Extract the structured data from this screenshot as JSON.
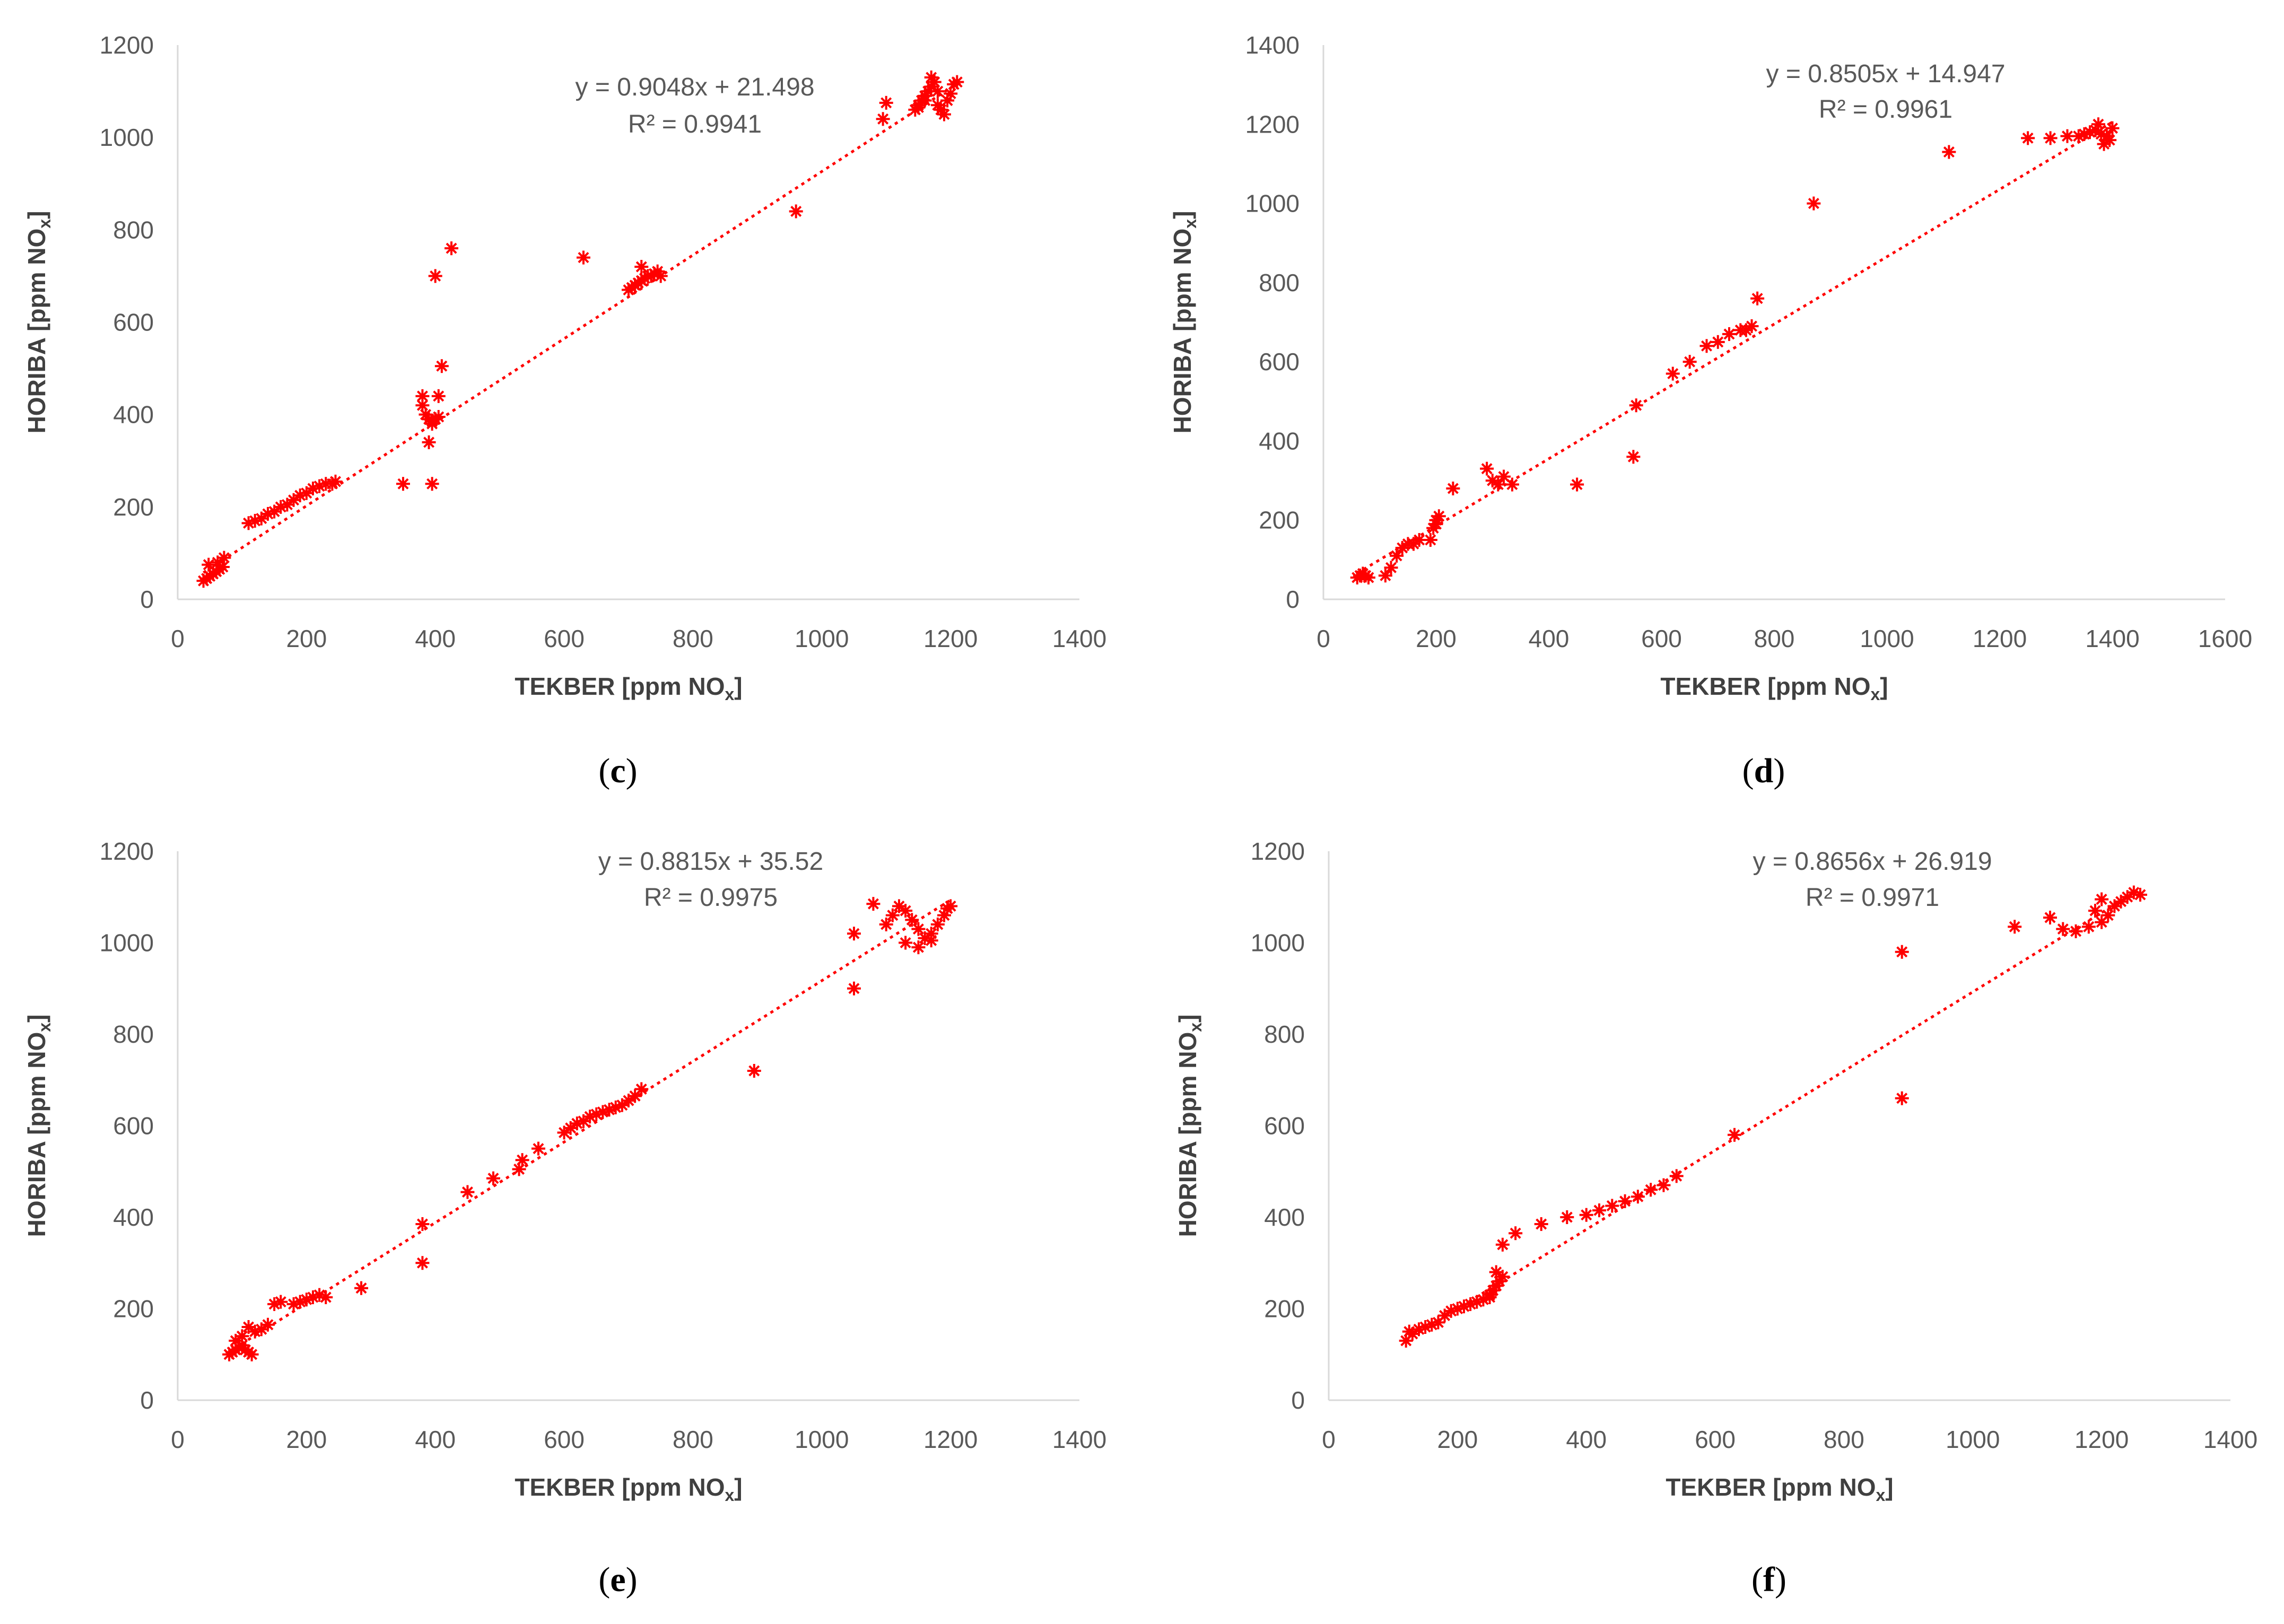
{
  "colors": {
    "marker": "#ff0000",
    "trend": "#ff0000",
    "axis": "#d9d9d9",
    "text": "#595959"
  },
  "chart_data": [
    {
      "type": "scatter",
      "panel_label": "c",
      "equation": "y = 0.9048x + 21.498",
      "r2": "R² = 0.9941",
      "xlabel": "TEKBER [ppm NO",
      "xlabel_sub": "x",
      "xlabel_end": "]",
      "ylabel": "HORIBA [ppm NO",
      "ylabel_sub": "x",
      "ylabel_end": "]",
      "xlim": [
        0,
        1400
      ],
      "ylim": [
        0,
        1200
      ],
      "xticks": [
        0,
        200,
        400,
        600,
        800,
        1000,
        1200,
        1400
      ],
      "yticks": [
        0,
        200,
        400,
        600,
        800,
        1000,
        1200
      ],
      "trendline": {
        "slope": 0.9048,
        "intercept": 21.498,
        "x_range": [
          40,
          1210
        ]
      },
      "marker": "asterisk",
      "series": [
        {
          "x": [
            40,
            45,
            50,
            55,
            60,
            65,
            70,
            48,
            62,
            72,
            110,
            120,
            130,
            140,
            150,
            160,
            170,
            180,
            190,
            200,
            210,
            220,
            230,
            240,
            245,
            350,
            380,
            385,
            390,
            395,
            400,
            405,
            390,
            395,
            405,
            380,
            410,
            395,
            400,
            425,
            630,
            700,
            705,
            710,
            715,
            720,
            725,
            730,
            735,
            740,
            745,
            750,
            720,
            960,
            1095,
            1100,
            1145,
            1150,
            1155,
            1160,
            1165,
            1170,
            1175,
            1180,
            1185,
            1190,
            1195,
            1200,
            1205,
            1210,
            1170,
            1180,
            1160,
            1150
          ],
          "y": [
            40,
            45,
            50,
            55,
            60,
            65,
            70,
            75,
            80,
            90,
            165,
            170,
            175,
            185,
            190,
            200,
            205,
            215,
            225,
            230,
            240,
            245,
            250,
            250,
            255,
            250,
            440,
            400,
            390,
            380,
            390,
            395,
            340,
            250,
            440,
            420,
            505,
            385,
            700,
            760,
            740,
            670,
            675,
            680,
            685,
            690,
            695,
            700,
            700,
            705,
            710,
            700,
            720,
            840,
            1040,
            1075,
            1060,
            1070,
            1080,
            1090,
            1100,
            1110,
            1120,
            1070,
            1060,
            1050,
            1080,
            1095,
            1115,
            1120,
            1130,
            1100,
            1080,
            1065
          ]
        }
      ]
    },
    {
      "type": "scatter",
      "panel_label": "d",
      "equation": "y = 0.8505x + 14.947",
      "r2": "R² = 0.9961",
      "xlabel": "TEKBER [ppm NO",
      "xlabel_sub": "x",
      "xlabel_end": "]",
      "ylabel": "HORIBA [ppm NO",
      "ylabel_sub": "x",
      "ylabel_end": "]",
      "xlim": [
        0,
        1600
      ],
      "ylim": [
        0,
        1400
      ],
      "xticks": [
        0,
        200,
        400,
        600,
        800,
        1000,
        1200,
        1400,
        1600
      ],
      "yticks": [
        0,
        200,
        400,
        600,
        800,
        1000,
        1200,
        1400
      ],
      "trendline": {
        "slope": 0.8505,
        "intercept": 14.947,
        "x_range": [
          60,
          1400
        ]
      },
      "marker": "asterisk",
      "series": [
        {
          "x": [
            60,
            65,
            70,
            75,
            80,
            110,
            120,
            130,
            140,
            150,
            160,
            170,
            190,
            195,
            200,
            205,
            200,
            230,
            290,
            300,
            310,
            320,
            335,
            450,
            550,
            555,
            620,
            650,
            680,
            700,
            720,
            740,
            750,
            760,
            770,
            870,
            1110,
            1250,
            1290,
            1320,
            1340,
            1350,
            1360,
            1370,
            1380,
            1390,
            1395,
            1400,
            1385,
            1375
          ],
          "y": [
            55,
            60,
            65,
            60,
            55,
            60,
            80,
            110,
            130,
            140,
            140,
            150,
            150,
            180,
            200,
            210,
            190,
            280,
            330,
            300,
            290,
            310,
            290,
            290,
            360,
            490,
            570,
            600,
            640,
            650,
            670,
            680,
            680,
            690,
            760,
            1000,
            1130,
            1165,
            1165,
            1170,
            1170,
            1175,
            1180,
            1185,
            1175,
            1170,
            1160,
            1190,
            1150,
            1200
          ]
        }
      ]
    },
    {
      "type": "scatter",
      "panel_label": "e",
      "equation": "y = 0.8815x + 35.52",
      "r2": "R² = 0.9975",
      "xlabel": "TEKBER [ppm NO",
      "xlabel_sub": "x",
      "xlabel_end": "]",
      "ylabel": "HORIBA [ppm NO",
      "ylabel_sub": "x",
      "ylabel_end": "]",
      "xlim": [
        0,
        1400
      ],
      "ylim": [
        0,
        1200
      ],
      "xticks": [
        0,
        200,
        400,
        600,
        800,
        1000,
        1200,
        1400
      ],
      "yticks": [
        0,
        200,
        400,
        600,
        800,
        1000,
        1200
      ],
      "trendline": {
        "slope": 0.8815,
        "intercept": 35.52,
        "x_range": [
          80,
          1200
        ]
      },
      "marker": "asterisk",
      "series": [
        {
          "x": [
            80,
            85,
            90,
            95,
            100,
            105,
            110,
            115,
            90,
            100,
            110,
            120,
            130,
            140,
            150,
            160,
            180,
            190,
            200,
            210,
            220,
            230,
            285,
            380,
            380,
            450,
            490,
            530,
            535,
            560,
            600,
            610,
            620,
            630,
            640,
            650,
            660,
            670,
            680,
            690,
            700,
            710,
            720,
            895,
            1050,
            1050,
            1080,
            1100,
            1110,
            1120,
            1130,
            1140,
            1150,
            1160,
            1170,
            1180,
            1190,
            1195,
            1200,
            1150,
            1130,
            1170
          ],
          "y": [
            100,
            105,
            110,
            115,
            120,
            110,
            105,
            100,
            130,
            140,
            160,
            150,
            155,
            165,
            210,
            215,
            210,
            215,
            220,
            225,
            230,
            225,
            245,
            385,
            300,
            455,
            485,
            505,
            525,
            550,
            585,
            595,
            605,
            610,
            620,
            625,
            630,
            635,
            640,
            645,
            655,
            665,
            680,
            720,
            900,
            1020,
            1085,
            1040,
            1060,
            1080,
            1070,
            1050,
            1030,
            1010,
            1020,
            1040,
            1060,
            1075,
            1080,
            990,
            1000,
            1005
          ]
        }
      ]
    },
    {
      "type": "scatter",
      "panel_label": "f",
      "equation": "y = 0.8656x + 26.919",
      "r2": "R² = 0.9971",
      "xlabel": "TEKBER [ppm NO",
      "xlabel_sub": "x",
      "xlabel_end": "]",
      "ylabel": "HORIBA [ppm NO",
      "ylabel_sub": "x",
      "ylabel_end": "]",
      "xlim": [
        0,
        1400
      ],
      "ylim": [
        0,
        1200
      ],
      "xticks": [
        0,
        200,
        400,
        600,
        800,
        1000,
        1200,
        1400
      ],
      "yticks": [
        0,
        200,
        400,
        600,
        800,
        1000,
        1200
      ],
      "trendline": {
        "slope": 0.8656,
        "intercept": 26.919,
        "x_range": [
          120,
          1260
        ]
      },
      "marker": "asterisk",
      "series": [
        {
          "x": [
            120,
            125,
            130,
            140,
            150,
            160,
            170,
            180,
            190,
            200,
            210,
            220,
            230,
            240,
            250,
            255,
            260,
            265,
            270,
            260,
            250,
            270,
            290,
            330,
            370,
            400,
            420,
            440,
            460,
            480,
            500,
            520,
            540,
            630,
            890,
            890,
            1065,
            1120,
            1140,
            1160,
            1180,
            1200,
            1210,
            1220,
            1230,
            1240,
            1250,
            1260,
            1200,
            1190
          ],
          "y": [
            130,
            150,
            145,
            155,
            160,
            165,
            170,
            185,
            195,
            200,
            205,
            210,
            215,
            220,
            230,
            240,
            250,
            260,
            270,
            280,
            225,
            340,
            365,
            385,
            400,
            405,
            415,
            425,
            435,
            445,
            460,
            470,
            490,
            580,
            980,
            660,
            1035,
            1055,
            1030,
            1025,
            1035,
            1045,
            1060,
            1080,
            1090,
            1100,
            1110,
            1105,
            1095,
            1070
          ]
        }
      ]
    }
  ]
}
